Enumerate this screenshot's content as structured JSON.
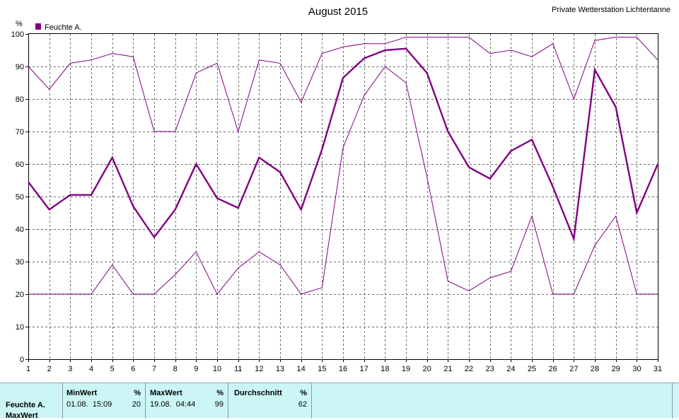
{
  "title": "August 2015",
  "station": "Private Wetterstation Lichtentanne",
  "y_unit": "%",
  "colors": {
    "series": "#800080",
    "legend_box": "#800080",
    "panel_bg": "#ccf6f6",
    "grid": "#6b6b6b"
  },
  "chart_data": {
    "type": "line",
    "title": "August 2015",
    "ylabel": "%",
    "ylim": [
      0,
      100
    ],
    "yticks": [
      0,
      10,
      20,
      30,
      40,
      50,
      60,
      70,
      80,
      90,
      100
    ],
    "x": [
      1,
      2,
      3,
      4,
      5,
      6,
      7,
      8,
      9,
      10,
      11,
      12,
      13,
      14,
      15,
      16,
      17,
      18,
      19,
      20,
      21,
      22,
      23,
      24,
      25,
      26,
      27,
      28,
      29,
      30,
      31
    ],
    "grid": true,
    "legend": {
      "placement": "top-left",
      "entries": [
        "Feuchte A."
      ]
    },
    "series": [
      {
        "name": "Feuchte A.",
        "role": "mean",
        "values": [
          54.5,
          46,
          50.5,
          50.5,
          62,
          47,
          37.5,
          46,
          60,
          49.5,
          46.5,
          62,
          57.5,
          46,
          64.5,
          86.5,
          92.5,
          95,
          95.5,
          88,
          70,
          59,
          55.5,
          64,
          67.5,
          53,
          37,
          89,
          77.5,
          45,
          60
        ]
      },
      {
        "role": "max",
        "values": [
          90,
          83,
          91,
          92,
          94,
          93,
          70,
          70,
          88,
          91,
          70,
          92,
          91,
          79,
          94,
          96,
          97,
          97,
          99,
          99,
          99,
          99,
          94,
          95,
          93,
          97,
          80,
          98,
          99,
          99,
          92
        ]
      },
      {
        "role": "min",
        "values": [
          20,
          20,
          20,
          20,
          29,
          20,
          20,
          26,
          33,
          20,
          28,
          33,
          29,
          20,
          22,
          65,
          81,
          90,
          85,
          56,
          24,
          21,
          25,
          27,
          44,
          20,
          20,
          35,
          44,
          20,
          20
        ]
      }
    ]
  },
  "stats": {
    "row_label": "Feuchte A.",
    "row_label_2": "MaxWert",
    "min": {
      "header": "MinWert",
      "unit": "%",
      "datetime": "01.08.  15:09",
      "value": "20"
    },
    "max": {
      "header": "MaxWert",
      "unit": "%",
      "datetime": "19.08.  04:44",
      "value": "99"
    },
    "avg": {
      "header": "Durchschnitt",
      "unit": "%",
      "value": "62"
    }
  }
}
